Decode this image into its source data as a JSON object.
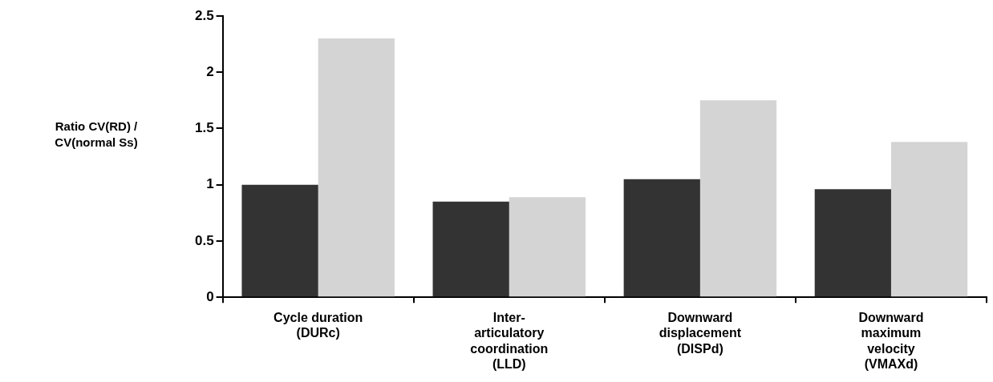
{
  "chart_data": {
    "type": "bar",
    "ylabel": "Ratio CV(RD) / CV(normal Ss)",
    "categories": [
      "Cycle duration (DURc)",
      "Inter-articulatory coordination (LLD)",
      "Downward displacement (DISPd)",
      "Downward maximum velocity (VMAXd)"
    ],
    "series": [
      {
        "color": "#333333",
        "values": [
          1.0,
          0.85,
          1.05,
          0.96
        ]
      },
      {
        "color": "#d4d4d4",
        "values": [
          2.3,
          0.89,
          1.75,
          1.38
        ]
      }
    ],
    "ylim": [
      0,
      2.5
    ],
    "yticks": [
      0,
      0.5,
      1,
      1.5,
      2,
      2.5
    ],
    "grid": false,
    "legend": false
  }
}
